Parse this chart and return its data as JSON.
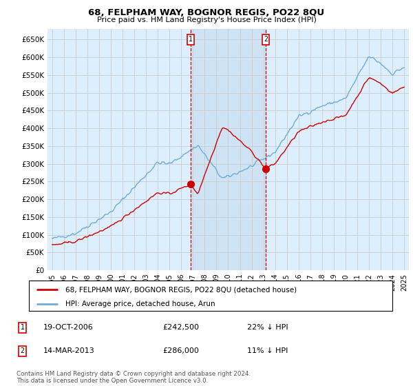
{
  "title": "68, FELPHAM WAY, BOGNOR REGIS, PO22 8QU",
  "subtitle": "Price paid vs. HM Land Registry's House Price Index (HPI)",
  "legend_entry1": "68, FELPHAM WAY, BOGNOR REGIS, PO22 8QU (detached house)",
  "legend_entry2": "HPI: Average price, detached house, Arun",
  "transaction1_label": "1",
  "transaction1_date": "19-OCT-2006",
  "transaction1_price": "£242,500",
  "transaction1_hpi": "22% ↓ HPI",
  "transaction2_label": "2",
  "transaction2_date": "14-MAR-2013",
  "transaction2_price": "£286,000",
  "transaction2_hpi": "11% ↓ HPI",
  "footnote": "Contains HM Land Registry data © Crown copyright and database right 2024.\nThis data is licensed under the Open Government Licence v3.0.",
  "hpi_color": "#6baed6",
  "price_color": "#cc0000",
  "vline_color": "#cc0000",
  "grid_color": "#cccccc",
  "plot_bg_color": "#ddeeff",
  "fig_bg_color": "#ffffff",
  "shade_color": "#ddeeff",
  "ylim_max": 680000,
  "yticks": [
    0,
    50000,
    100000,
    150000,
    200000,
    250000,
    300000,
    350000,
    400000,
    450000,
    500000,
    550000,
    600000,
    650000
  ],
  "transaction1_x": 2006.8,
  "transaction2_x": 2013.2,
  "transaction1_y": 242500,
  "transaction2_y": 286000,
  "xmin": 1995,
  "xmax": 2025
}
